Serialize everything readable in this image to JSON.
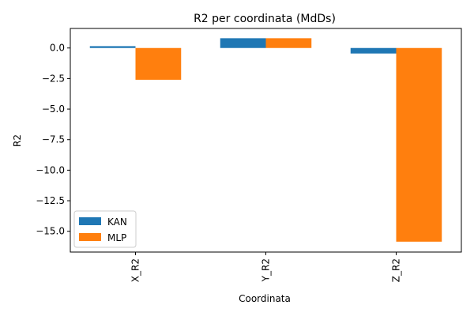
{
  "chart_data": {
    "type": "bar",
    "title": "R2 per coordinata (MdDs)",
    "xlabel": "Coordinata",
    "ylabel": "R2",
    "categories": [
      "X_R2",
      "Y_R2",
      "Z_R2"
    ],
    "series": [
      {
        "name": "KAN",
        "values": [
          0.15,
          0.8,
          -0.45
        ],
        "color": "#1f77b4"
      },
      {
        "name": "MLP",
        "values": [
          -2.6,
          0.8,
          -15.85
        ],
        "color": "#ff7f0e"
      }
    ],
    "ylim": [
      -16.7,
      1.6
    ],
    "yticks": [
      0.0,
      -2.5,
      -5.0,
      -7.5,
      -10.0,
      -12.5,
      -15.0
    ],
    "ytick_labels": [
      "0.0",
      "−2.5",
      "−5.0",
      "−7.5",
      "−10.0",
      "−12.5",
      "−15.0"
    ],
    "xtick_rotation": "vertical",
    "grid": false,
    "legend_position": "lower-left"
  }
}
